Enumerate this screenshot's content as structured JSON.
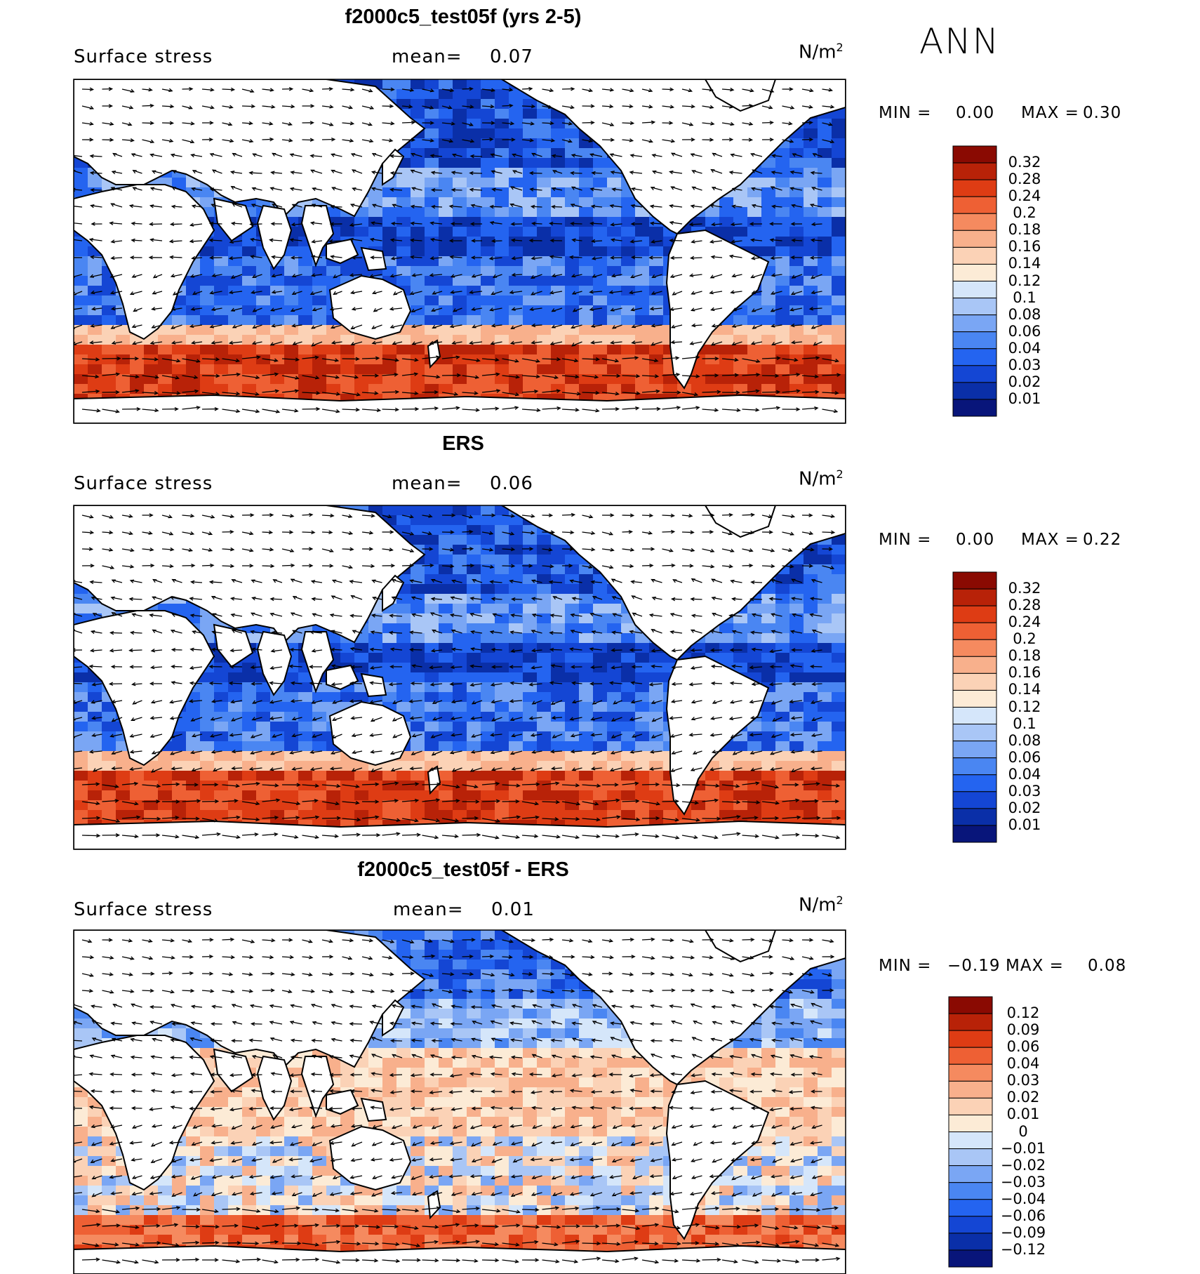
{
  "season": "ANN",
  "colors": {
    "abs_scale": [
      "#08157a",
      "#0a2fa8",
      "#1446d4",
      "#2464f0",
      "#4a86f2",
      "#7aa6f4",
      "#a9c6f6",
      "#d5e6fa",
      "#fcebd6",
      "#fbd2b6",
      "#f8b08c",
      "#f58a5f",
      "#ee6034",
      "#de3c14",
      "#b82208",
      "#8a0a02"
    ],
    "diff_scale": [
      "#08157a",
      "#0a2fa8",
      "#1446d4",
      "#2464f0",
      "#4a86f2",
      "#7aa6f4",
      "#a9c6f6",
      "#d5e6fa",
      "#fcebd6",
      "#fbd2b6",
      "#f8b08c",
      "#f58a5f",
      "#ee6034",
      "#de3c14",
      "#b82208",
      "#8a0a02"
    ],
    "land": "#ffffff",
    "coast": "#000000"
  },
  "panels": [
    {
      "title": "f2000c5_test05f (yrs 2-5)",
      "variable": "Surface stress",
      "mean_label": "mean=",
      "mean_value": "0.07",
      "units": "N/m",
      "units_sup": "2",
      "min_label": "MIN =",
      "min_value": "0.00",
      "max_label": "MAX =",
      "max_value": "0.30",
      "colorbar_labels": [
        "0.32",
        "0.28",
        "0.24",
        "0.2",
        "0.18",
        "0.16",
        "0.14",
        "0.12",
        "0.1",
        "0.08",
        "0.06",
        "0.04",
        "0.03",
        "0.02",
        "0.01"
      ]
    },
    {
      "title": "ERS",
      "variable": "Surface stress",
      "mean_label": "mean=",
      "mean_value": "0.06",
      "units": "N/m",
      "units_sup": "2",
      "min_label": "MIN =",
      "min_value": "0.00",
      "max_label": "MAX =",
      "max_value": "0.22",
      "colorbar_labels": [
        "0.32",
        "0.28",
        "0.24",
        "0.2",
        "0.18",
        "0.16",
        "0.14",
        "0.12",
        "0.1",
        "0.08",
        "0.06",
        "0.04",
        "0.03",
        "0.02",
        "0.01"
      ]
    },
    {
      "title": "f2000c5_test05f - ERS",
      "variable": "Surface stress",
      "mean_label": "mean=",
      "mean_value": "0.01",
      "units": "N/m",
      "units_sup": "2",
      "min_label": "MIN =",
      "min_value": "−0.19",
      "max_label": "MAX =",
      "max_value": "0.08",
      "colorbar_labels": [
        "0.12",
        "0.09",
        "0.06",
        "0.04",
        "0.03",
        "0.02",
        "0.01",
        "0",
        "−0.01",
        "−0.02",
        "−0.03",
        "−0.04",
        "−0.06",
        "−0.09",
        "−0.12"
      ]
    }
  ]
}
